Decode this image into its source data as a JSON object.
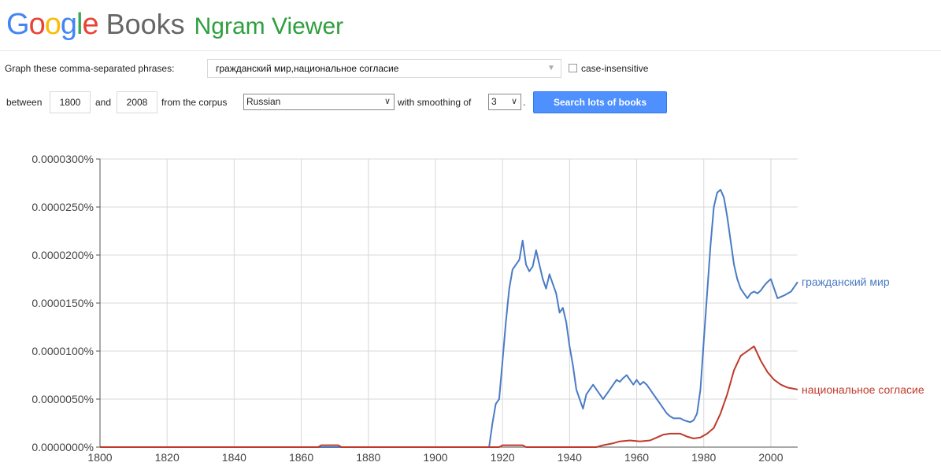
{
  "header": {
    "logo_text": "Google",
    "books_text": "Books",
    "product_text": "Ngram Viewer"
  },
  "form": {
    "phrases_label": "Graph these comma-separated phrases:",
    "phrases_value": "гражданский мир,национальное согласие",
    "case_insensitive_label": "case-insensitive",
    "between_label": "between",
    "start_year": "1800",
    "and_label": "and",
    "end_year": "2008",
    "corpus_label": "from the corpus",
    "corpus_value": "Russian",
    "smoothing_label": "with smoothing of",
    "smoothing_value": "3",
    "period": ".",
    "search_button": "Search lots of books"
  },
  "colors": {
    "series_1": "#4a7bc5",
    "series_2": "#c0392b",
    "search_button": "#4d90fe",
    "grid": "#d8d8d8"
  },
  "chart_data": {
    "type": "line",
    "xlim": [
      1800,
      2008
    ],
    "ylim": [
      0,
      3e-05
    ],
    "x_ticks": [
      "1800",
      "1820",
      "1840",
      "1860",
      "1880",
      "1900",
      "1920",
      "1940",
      "1960",
      "1980",
      "2000"
    ],
    "y_ticks": [
      "0.0000000%",
      "0.0000050%",
      "0.0000100%",
      "0.0000150%",
      "0.0000200%",
      "0.0000250%",
      "0.0000300%"
    ],
    "grid": true,
    "legend": "inline-right",
    "series": [
      {
        "name": "гражданский мир",
        "color": "#4a7bc5",
        "points": [
          [
            1800,
            0
          ],
          [
            1916,
            0
          ],
          [
            1917,
            2.5e-06
          ],
          [
            1918,
            4.5e-06
          ],
          [
            1919,
            5e-06
          ],
          [
            1920,
            9e-06
          ],
          [
            1921,
            1.3e-05
          ],
          [
            1922,
            1.65e-05
          ],
          [
            1923,
            1.85e-05
          ],
          [
            1924,
            1.9e-05
          ],
          [
            1925,
            1.95e-05
          ],
          [
            1926,
            2.15e-05
          ],
          [
            1927,
            1.9e-05
          ],
          [
            1928,
            1.83e-05
          ],
          [
            1929,
            1.88e-05
          ],
          [
            1930,
            2.05e-05
          ],
          [
            1931,
            1.9e-05
          ],
          [
            1932,
            1.75e-05
          ],
          [
            1933,
            1.65e-05
          ],
          [
            1934,
            1.8e-05
          ],
          [
            1935,
            1.7e-05
          ],
          [
            1936,
            1.6e-05
          ],
          [
            1937,
            1.4e-05
          ],
          [
            1938,
            1.45e-05
          ],
          [
            1939,
            1.3e-05
          ],
          [
            1940,
            1.05e-05
          ],
          [
            1941,
            8.5e-06
          ],
          [
            1942,
            6e-06
          ],
          [
            1943,
            5e-06
          ],
          [
            1944,
            4e-06
          ],
          [
            1945,
            5.5e-06
          ],
          [
            1946,
            6e-06
          ],
          [
            1947,
            6.5e-06
          ],
          [
            1948,
            6e-06
          ],
          [
            1949,
            5.5e-06
          ],
          [
            1950,
            5e-06
          ],
          [
            1951,
            5.5e-06
          ],
          [
            1952,
            6e-06
          ],
          [
            1953,
            6.5e-06
          ],
          [
            1954,
            7e-06
          ],
          [
            1955,
            6.8e-06
          ],
          [
            1956,
            7.2e-06
          ],
          [
            1957,
            7.5e-06
          ],
          [
            1958,
            7e-06
          ],
          [
            1959,
            6.5e-06
          ],
          [
            1960,
            7e-06
          ],
          [
            1961,
            6.5e-06
          ],
          [
            1962,
            6.8e-06
          ],
          [
            1963,
            6.5e-06
          ],
          [
            1964,
            6e-06
          ],
          [
            1965,
            5.5e-06
          ],
          [
            1966,
            5e-06
          ],
          [
            1967,
            4.5e-06
          ],
          [
            1968,
            4e-06
          ],
          [
            1969,
            3.5e-06
          ],
          [
            1970,
            3.2e-06
          ],
          [
            1971,
            3e-06
          ],
          [
            1972,
            3e-06
          ],
          [
            1973,
            3e-06
          ],
          [
            1974,
            2.8e-06
          ],
          [
            1975,
            2.7e-06
          ],
          [
            1976,
            2.6e-06
          ],
          [
            1977,
            2.8e-06
          ],
          [
            1978,
            3.5e-06
          ],
          [
            1979,
            6e-06
          ],
          [
            1980,
            1.1e-05
          ],
          [
            1981,
            1.6e-05
          ],
          [
            1982,
            2.1e-05
          ],
          [
            1983,
            2.5e-05
          ],
          [
            1984,
            2.65e-05
          ],
          [
            1985,
            2.68e-05
          ],
          [
            1986,
            2.6e-05
          ],
          [
            1987,
            2.4e-05
          ],
          [
            1988,
            2.15e-05
          ],
          [
            1989,
            1.9e-05
          ],
          [
            1990,
            1.75e-05
          ],
          [
            1991,
            1.65e-05
          ],
          [
            1992,
            1.6e-05
          ],
          [
            1993,
            1.55e-05
          ],
          [
            1994,
            1.6e-05
          ],
          [
            1995,
            1.62e-05
          ],
          [
            1996,
            1.6e-05
          ],
          [
            1997,
            1.63e-05
          ],
          [
            1998,
            1.68e-05
          ],
          [
            1999,
            1.72e-05
          ],
          [
            2000,
            1.75e-05
          ],
          [
            2002,
            1.55e-05
          ],
          [
            2004,
            1.58e-05
          ],
          [
            2006,
            1.62e-05
          ],
          [
            2008,
            1.72e-05
          ]
        ]
      },
      {
        "name": "национальное согласие",
        "color": "#c0392b",
        "points": [
          [
            1800,
            0
          ],
          [
            1865,
            0
          ],
          [
            1866,
            2e-07
          ],
          [
            1871,
            2e-07
          ],
          [
            1872,
            0
          ],
          [
            1919,
            0
          ],
          [
            1920,
            2e-07
          ],
          [
            1926,
            2e-07
          ],
          [
            1927,
            0
          ],
          [
            1948,
            0
          ],
          [
            1950,
            2e-07
          ],
          [
            1953,
            4e-07
          ],
          [
            1955,
            6e-07
          ],
          [
            1958,
            7e-07
          ],
          [
            1961,
            6e-07
          ],
          [
            1964,
            7e-07
          ],
          [
            1966,
            1e-06
          ],
          [
            1968,
            1.3e-06
          ],
          [
            1970,
            1.4e-06
          ],
          [
            1973,
            1.4e-06
          ],
          [
            1975,
            1.1e-06
          ],
          [
            1977,
            9e-07
          ],
          [
            1979,
            1e-06
          ],
          [
            1981,
            1.4e-06
          ],
          [
            1983,
            2e-06
          ],
          [
            1985,
            3.5e-06
          ],
          [
            1987,
            5.5e-06
          ],
          [
            1989,
            8e-06
          ],
          [
            1991,
            9.5e-06
          ],
          [
            1993,
            1e-05
          ],
          [
            1995,
            1.05e-05
          ],
          [
            1997,
            9e-06
          ],
          [
            1999,
            7.8e-06
          ],
          [
            2001,
            7e-06
          ],
          [
            2003,
            6.5e-06
          ],
          [
            2005,
            6.2e-06
          ],
          [
            2008,
            6e-06
          ]
        ]
      }
    ]
  }
}
